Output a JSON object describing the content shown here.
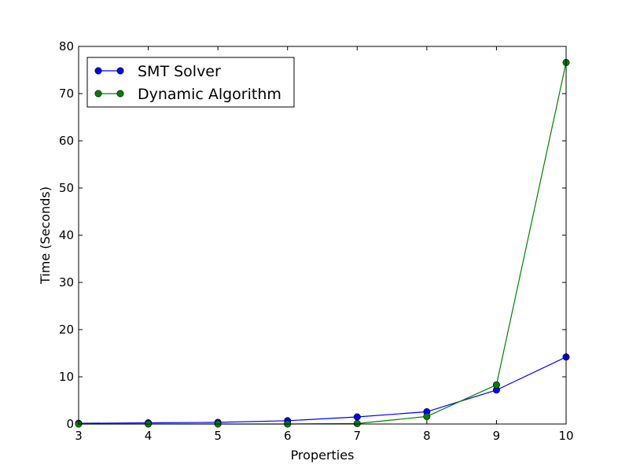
{
  "chart_data": {
    "type": "line",
    "xlabel": "Properties",
    "ylabel": "Time (Seconds)",
    "xlim": [
      3,
      10
    ],
    "ylim": [
      0,
      80
    ],
    "x_ticks": [
      "3",
      "4",
      "5",
      "6",
      "7",
      "8",
      "9",
      "10"
    ],
    "y_ticks": [
      "0",
      "10",
      "20",
      "30",
      "40",
      "50",
      "60",
      "70",
      "80"
    ],
    "grid": false,
    "legend_position": "top-left",
    "x": [
      3,
      4,
      5,
      6,
      7,
      8,
      9,
      10
    ],
    "series": [
      {
        "name": "SMT Solver",
        "color": "#0000ff",
        "values": [
          0.15,
          0.25,
          0.35,
          0.7,
          1.5,
          2.6,
          7.2,
          14.2
        ]
      },
      {
        "name": "Dynamic Algorithm",
        "color": "#008000",
        "values": [
          0.0,
          0.0,
          0.0,
          0.0,
          0.1,
          1.6,
          8.3,
          76.6
        ]
      }
    ]
  }
}
